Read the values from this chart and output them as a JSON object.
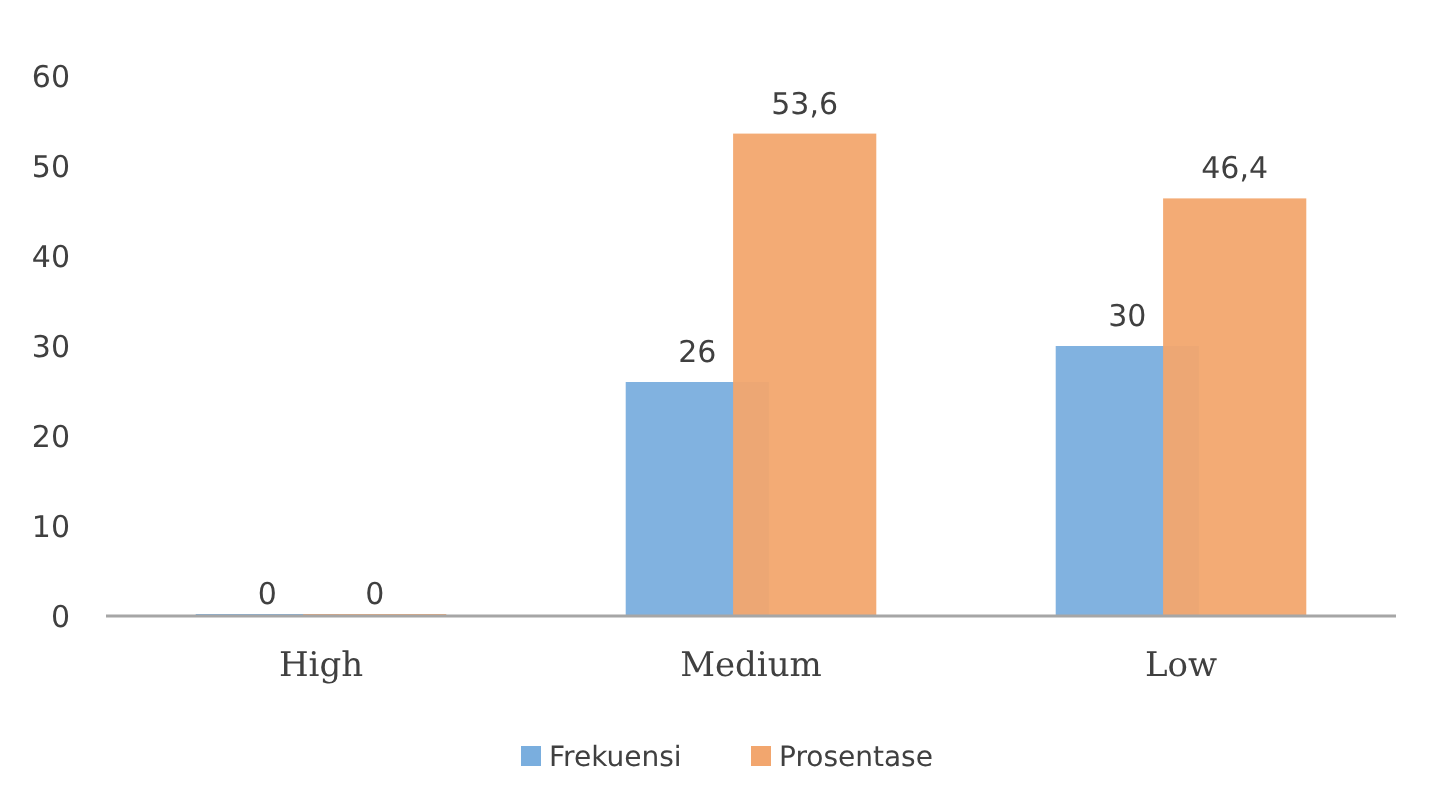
{
  "chart_data": {
    "type": "bar",
    "categories": [
      "High",
      "Medium",
      "Low"
    ],
    "series": [
      {
        "name": "Frekuensi",
        "color": "#7aaede",
        "values": [
          0,
          26,
          30
        ],
        "value_labels": [
          "0",
          "26",
          "30"
        ]
      },
      {
        "name": "Prosentase",
        "color": "#f2a66e",
        "values": [
          0,
          53.6,
          46.4
        ],
        "value_labels": [
          "0",
          "53,6",
          "46,4"
        ]
      }
    ],
    "ylim": [
      0,
      60
    ],
    "yticks": [
      0,
      10,
      20,
      30,
      40,
      50,
      60
    ],
    "grid": false,
    "legend": "bottom"
  }
}
